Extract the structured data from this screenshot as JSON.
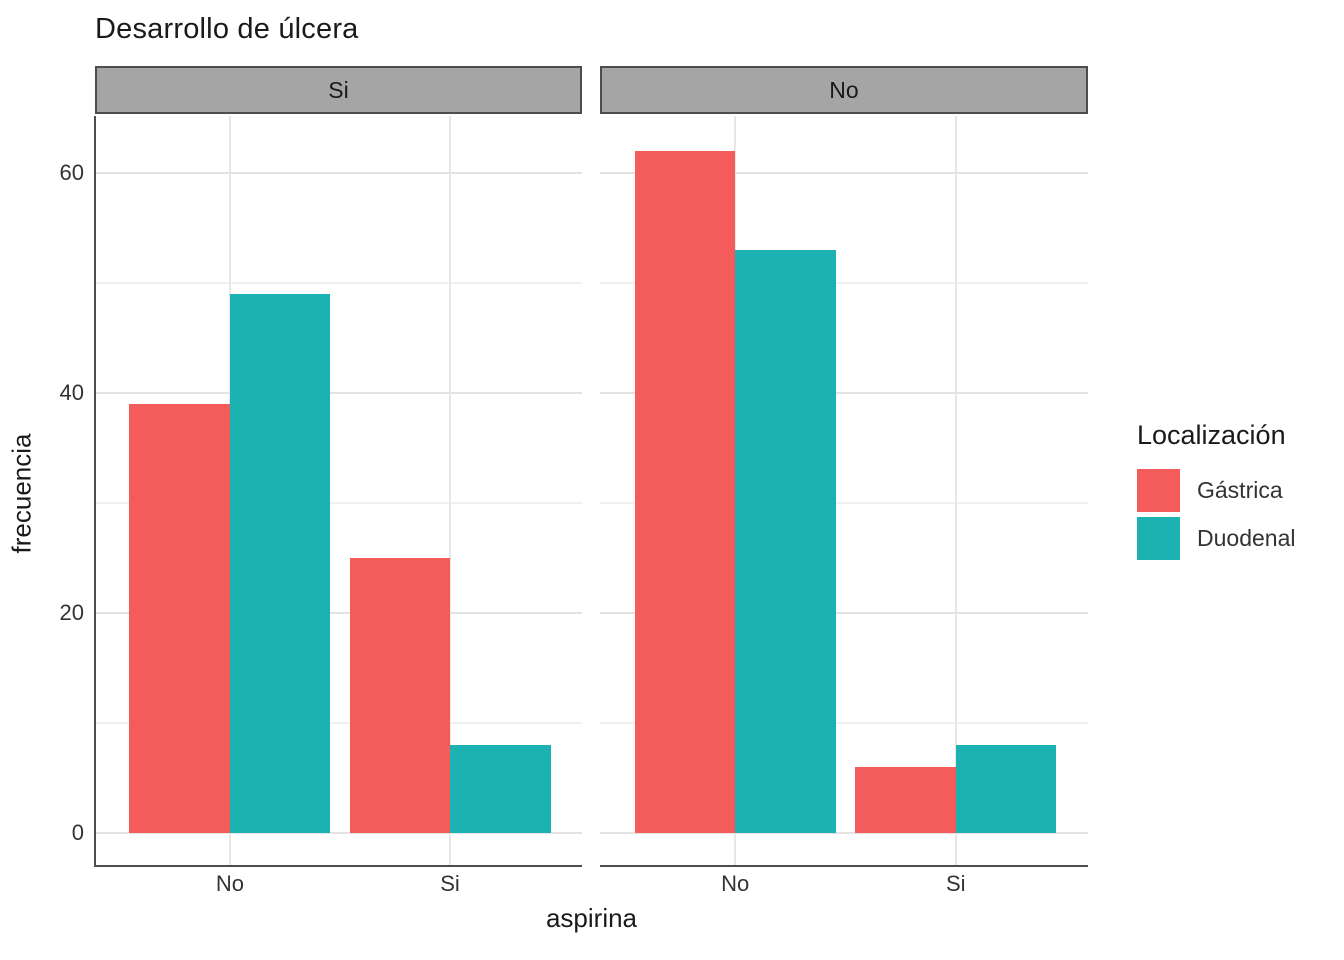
{
  "chart_data": {
    "type": "bar",
    "title": "Desarrollo de úlcera",
    "xlabel": "aspirina",
    "ylabel": "frecuencia",
    "categories": [
      "No",
      "Si"
    ],
    "facets": [
      {
        "label": "Si",
        "series": [
          {
            "name": "Gástrica",
            "color": "#F35C5B",
            "values": [
              39,
              25
            ]
          },
          {
            "name": "Duodenal",
            "color": "#1BB2B1",
            "values": [
              49,
              8
            ]
          }
        ]
      },
      {
        "label": "No",
        "series": [
          {
            "name": "Gástrica",
            "color": "#F35C5B",
            "values": [
              62,
              6
            ]
          },
          {
            "name": "Duodenal",
            "color": "#1BB2B1",
            "values": [
              53,
              8
            ]
          }
        ]
      }
    ],
    "yticks": [
      0,
      20,
      40,
      60
    ],
    "yticks_minor": [
      10,
      30,
      50
    ],
    "ylim": [
      -3,
      65.2
    ],
    "grid": "horizontal major+minor, vertical major at category centers",
    "legend_position": "right",
    "legend": {
      "title": "Localización",
      "entries": [
        {
          "label": "Gástrica",
          "color": "#F35C5B"
        },
        {
          "label": "Duodenal",
          "color": "#1BB2B1"
        }
      ]
    },
    "colors": {
      "strip_fill": "#A5A5A5",
      "strip_border": "#4D4D4D",
      "axis_line": "#4D4D4D",
      "grid_major": "#E3E3E3",
      "grid_minor": "#F0F0F0",
      "title_text": "#1A1A1A",
      "tick_text": "#333333"
    }
  }
}
